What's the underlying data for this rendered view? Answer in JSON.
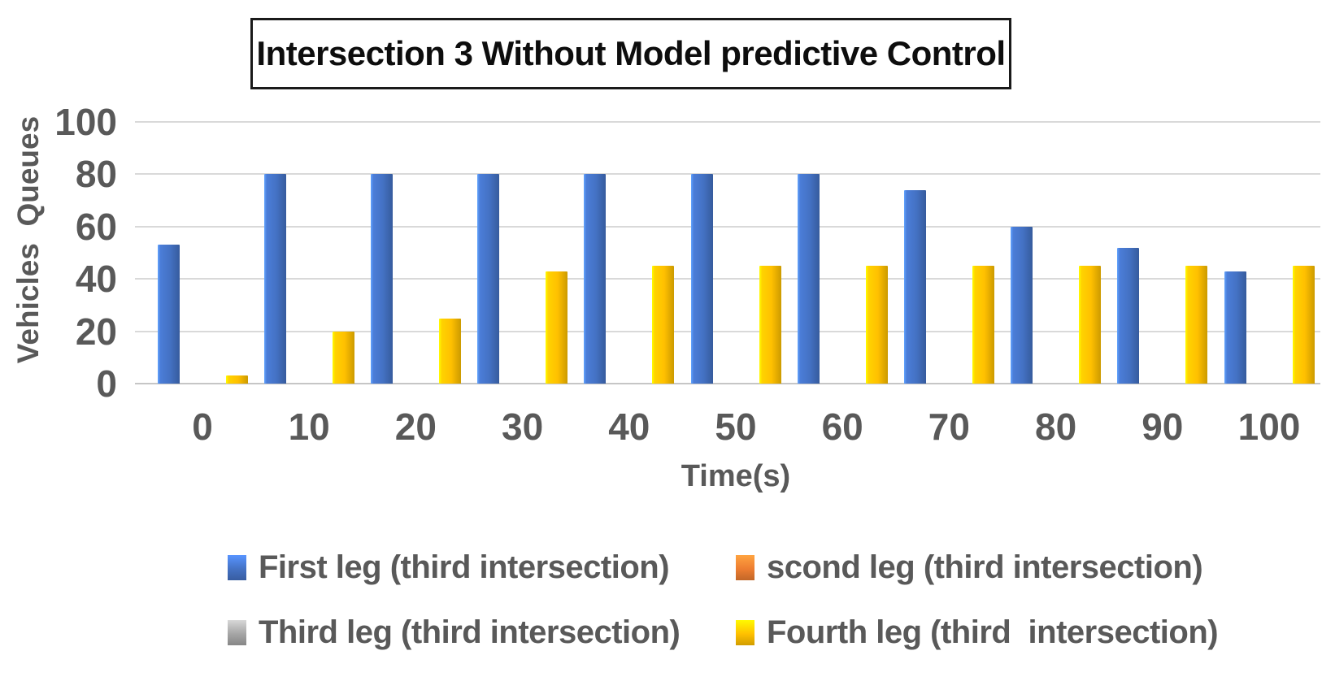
{
  "title": "Intersection 3 Without Model predictive Control",
  "y_axis": {
    "title": "Vehicles  Queues",
    "ticks": [
      "100",
      "80",
      "60",
      "40",
      "20",
      "0"
    ]
  },
  "x_axis": {
    "title": "Time(s)",
    "ticks": [
      "0",
      "10",
      "20",
      "30",
      "40",
      "50",
      "60",
      "70",
      "80",
      "90",
      "100"
    ]
  },
  "legend": [
    {
      "label": "First leg (third intersection)",
      "color": "#4472C4"
    },
    {
      "label": "scond leg (third intersection)",
      "color": "#ED7D31"
    },
    {
      "label": "Third leg (third intersection)",
      "color": "#A5A5A5"
    },
    {
      "label": "Fourth leg (third  intersection)",
      "color": "#FFC000"
    }
  ],
  "colors": {
    "grid": "#D9D9D9",
    "axis_line": "#C6C6C6",
    "text": "#595959",
    "title_text": "#0D0D0D",
    "blue_series": "#4472C4",
    "yellow_series": "#FFC000"
  },
  "chart_data": {
    "type": "bar",
    "title": "Intersection 3 Without Model predictive Control",
    "xlabel": "Time(s)",
    "ylabel": "Vehicles Queues",
    "ylim": [
      0,
      100
    ],
    "ytick_step": 20,
    "grid": true,
    "legend_position": "bottom",
    "categories": [
      0,
      10,
      20,
      30,
      40,
      50,
      60,
      70,
      80,
      90,
      100
    ],
    "series": [
      {
        "name": "First leg (third intersection)",
        "color": "#4472C4",
        "values": [
          53,
          80,
          80,
          80,
          80,
          80,
          80,
          74,
          60,
          52,
          43
        ]
      },
      {
        "name": "scond leg (third intersection)",
        "color": "#ED7D31",
        "values": [
          0,
          0,
          0,
          0,
          0,
          0,
          0,
          0,
          0,
          0,
          0
        ]
      },
      {
        "name": "Third leg (third intersection)",
        "color": "#A5A5A5",
        "values": [
          0,
          0,
          0,
          0,
          0,
          0,
          0,
          0,
          0,
          0,
          0
        ]
      },
      {
        "name": "Fourth leg (third  intersection)",
        "color": "#FFC000",
        "values": [
          3,
          20,
          25,
          43,
          45,
          45,
          45,
          45,
          45,
          45,
          45
        ]
      }
    ]
  }
}
